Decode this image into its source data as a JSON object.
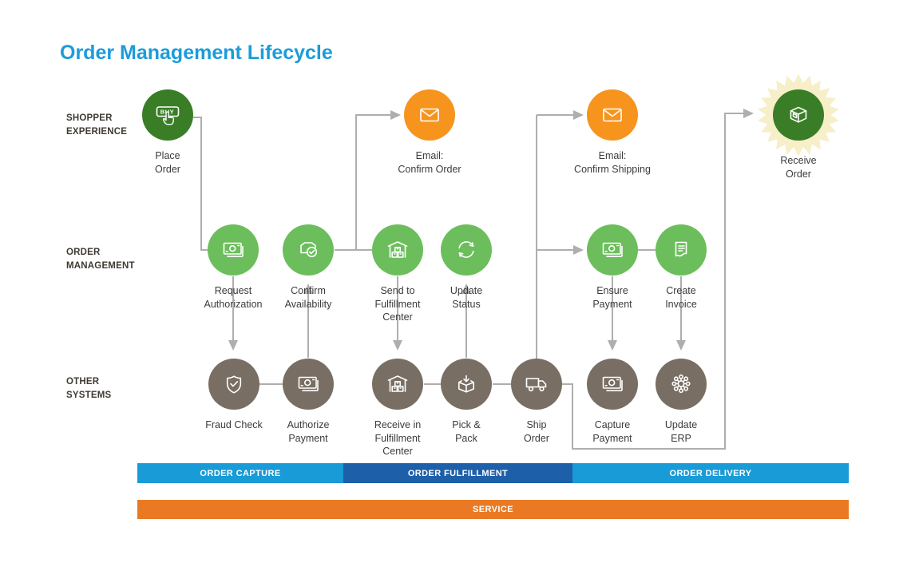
{
  "title": "Order Management Lifecycle",
  "lanes": [
    {
      "label": "SHOPPER\nEXPERIENCE"
    },
    {
      "label": "ORDER\nMANAGEMENT"
    },
    {
      "label": "OTHER\nSYSTEMS"
    }
  ],
  "nodes": {
    "shopper": [
      {
        "label": "Place\nOrder",
        "icon": "buy-button-icon",
        "color": "#3A7D27",
        "button_text": "BUY"
      },
      {
        "label": "Email:\nConfirm Order",
        "icon": "envelope-icon",
        "color": "#F6941E"
      },
      {
        "label": "Email:\nConfirm Shipping",
        "icon": "envelope-icon",
        "color": "#F6941E"
      },
      {
        "label": "Receive\nOrder",
        "icon": "package-box-icon",
        "color": "#3A7D27"
      }
    ],
    "management": [
      {
        "label": "Request\nAuthorization",
        "icon": "cash-icon",
        "color": "#6CBE5C"
      },
      {
        "label": "Confirm\nAvailability",
        "icon": "box-check-icon",
        "color": "#6CBE5C"
      },
      {
        "label": "Send to\nFulfillment\nCenter",
        "icon": "warehouse-icon",
        "color": "#6CBE5C"
      },
      {
        "label": "Update\nStatus",
        "icon": "refresh-icon",
        "color": "#6CBE5C"
      },
      {
        "label": "Ensure\nPayment",
        "icon": "cash-icon",
        "color": "#6CBE5C"
      },
      {
        "label": "Create\nInvoice",
        "icon": "invoice-icon",
        "color": "#6CBE5C"
      }
    ],
    "systems": [
      {
        "label": "Fraud Check",
        "icon": "shield-check-icon",
        "color": "#796E63"
      },
      {
        "label": "Authorize\nPayment",
        "icon": "cash-icon",
        "color": "#796E63"
      },
      {
        "label": "Receive in\nFulfillment\nCenter",
        "icon": "warehouse-icon",
        "color": "#796E63"
      },
      {
        "label": "Pick &\nPack",
        "icon": "pick-pack-icon",
        "color": "#796E63"
      },
      {
        "label": "Ship\nOrder",
        "icon": "truck-icon",
        "color": "#796E63"
      },
      {
        "label": "Capture\nPayment",
        "icon": "cash-icon",
        "color": "#796E63"
      },
      {
        "label": "Update\nERP",
        "icon": "network-icon",
        "color": "#796E63"
      }
    ]
  },
  "phase_bars": [
    {
      "label": "ORDER CAPTURE",
      "color": "#189BD7"
    },
    {
      "label": "ORDER FULFILLMENT",
      "color": "#1E5FA9"
    },
    {
      "label": "ORDER DELIVERY",
      "color": "#189BD7"
    }
  ],
  "service_bar": {
    "label": "SERVICE",
    "color": "#E97A23"
  },
  "colors": {
    "title_blue": "#1B9CD9",
    "dark_green": "#3A7D27",
    "light_green": "#6CBE5C",
    "orange": "#F6941E",
    "brown": "#796E63",
    "connector_gray": "#AFAEAD",
    "starburst_cream": "#F6EFC8",
    "bar_light_blue": "#189BD7",
    "bar_dark_blue": "#1E5FA9",
    "bar_orange": "#E97A23"
  }
}
